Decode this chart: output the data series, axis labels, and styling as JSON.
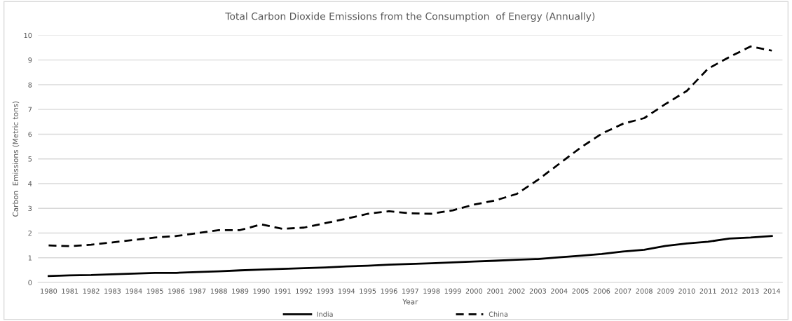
{
  "chart_data": {
    "type": "line",
    "title": "Total Carbon Dioxide Emissions from the Consumption  of Energy (Annually)",
    "xlabel": "Year",
    "ylabel": "Carbon  Emissions (Metric tons)",
    "categories": [
      "1980",
      "1981",
      "1982",
      "1983",
      "1984",
      "1985",
      "1986",
      "1987",
      "1988",
      "1989",
      "1990",
      "1991",
      "1992",
      "1993",
      "1994",
      "1995",
      "1996",
      "1997",
      "1998",
      "1999",
      "2000",
      "2001",
      "2002",
      "2003",
      "2004",
      "2005",
      "2006",
      "2007",
      "2008",
      "2009",
      "2010",
      "2011",
      "2012",
      "2013",
      "2014"
    ],
    "series": [
      {
        "name": "India",
        "color": "#000000",
        "line_style": "solid",
        "values": [
          0.26,
          0.29,
          0.3,
          0.33,
          0.36,
          0.39,
          0.39,
          0.42,
          0.45,
          0.49,
          0.52,
          0.55,
          0.58,
          0.61,
          0.65,
          0.68,
          0.72,
          0.75,
          0.78,
          0.81,
          0.85,
          0.88,
          0.92,
          0.95,
          1.02,
          1.08,
          1.15,
          1.25,
          1.32,
          1.48,
          1.58,
          1.65,
          1.78,
          1.82,
          1.88
        ]
      },
      {
        "name": "China",
        "color": "#000000",
        "line_style": "dashed",
        "values": [
          1.5,
          1.47,
          1.53,
          1.62,
          1.72,
          1.82,
          1.88,
          2.0,
          2.12,
          2.12,
          2.35,
          2.17,
          2.22,
          2.4,
          2.58,
          2.78,
          2.88,
          2.8,
          2.78,
          2.92,
          3.15,
          3.32,
          3.58,
          4.15,
          4.8,
          5.45,
          6.02,
          6.42,
          6.65,
          7.22,
          7.75,
          8.65,
          9.12,
          9.55,
          9.38
        ]
      }
    ],
    "ylim": [
      0,
      10
    ],
    "yticks": [
      0,
      1,
      2,
      3,
      4,
      5,
      6,
      7,
      8,
      9,
      10
    ],
    "grid": "y",
    "legend": "bottom",
    "marker": "none"
  }
}
